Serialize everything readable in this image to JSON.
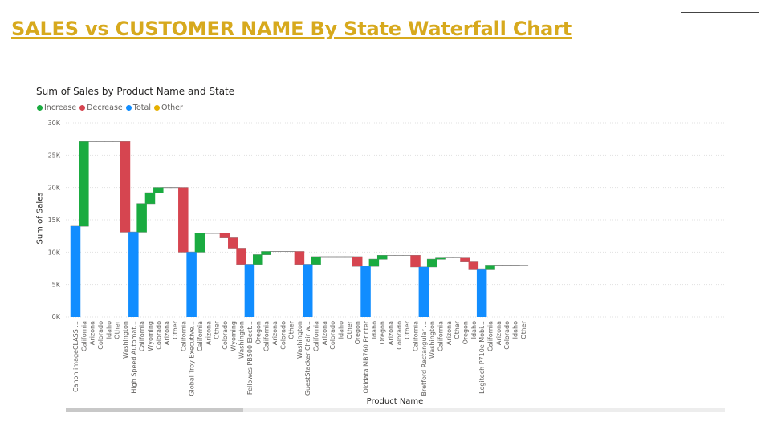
{
  "page": {
    "title": "SALES vs CUSTOMER NAME By State Waterfall Chart"
  },
  "legend": {
    "items": [
      {
        "label": "Increase",
        "color": "#1aab40"
      },
      {
        "label": "Decrease",
        "color": "#d64550"
      },
      {
        "label": "Total",
        "color": "#118dff"
      },
      {
        "label": "Other",
        "color": "#e6b000"
      }
    ]
  },
  "chart_data": {
    "type": "waterfall",
    "title": "Sum of Sales by Product Name and State",
    "xlabel": "Product Name",
    "ylabel": "Sum of Sales",
    "ylim": [
      0,
      30000
    ],
    "yticks": [
      {
        "value": 0,
        "label": "0K"
      },
      {
        "value": 5000,
        "label": "5K"
      },
      {
        "value": 10000,
        "label": "10K"
      },
      {
        "value": 15000,
        "label": "15K"
      },
      {
        "value": 20000,
        "label": "20K"
      },
      {
        "value": 25000,
        "label": "25K"
      },
      {
        "value": 30000,
        "label": "30K"
      }
    ],
    "grid": true,
    "legend_position": "top-left",
    "colors": {
      "increase": "#1aab40",
      "decrease": "#d64550",
      "total": "#118dff"
    },
    "bars": [
      {
        "label": "Canon imageCLASS ...",
        "kind": "total",
        "start": 0,
        "end": 14000
      },
      {
        "label": "California",
        "kind": "increase",
        "start": 14000,
        "end": 27100
      },
      {
        "label": "Arizona",
        "kind": "flat",
        "start": 27100,
        "end": 27100
      },
      {
        "label": "Colorado",
        "kind": "flat",
        "start": 27100,
        "end": 27100
      },
      {
        "label": "Idaho",
        "kind": "flat",
        "start": 27100,
        "end": 27100
      },
      {
        "label": "Other",
        "kind": "flat",
        "start": 27100,
        "end": 27100
      },
      {
        "label": "Washington",
        "kind": "decrease",
        "start": 27100,
        "end": 13100
      },
      {
        "label": "High Speed Automat...",
        "kind": "total",
        "start": 0,
        "end": 13100
      },
      {
        "label": "California",
        "kind": "increase",
        "start": 13100,
        "end": 17500
      },
      {
        "label": "Wyoming",
        "kind": "increase",
        "start": 17500,
        "end": 19200
      },
      {
        "label": "Colorado",
        "kind": "increase",
        "start": 19200,
        "end": 20000
      },
      {
        "label": "Arizona",
        "kind": "flat",
        "start": 20000,
        "end": 20000
      },
      {
        "label": "Other",
        "kind": "flat",
        "start": 20000,
        "end": 20000
      },
      {
        "label": "California",
        "kind": "decrease",
        "start": 20000,
        "end": 10000
      },
      {
        "label": "Global Troy Executive...",
        "kind": "total",
        "start": 0,
        "end": 10000
      },
      {
        "label": "California",
        "kind": "increase",
        "start": 10000,
        "end": 12900
      },
      {
        "label": "Arizona",
        "kind": "flat",
        "start": 12900,
        "end": 12900
      },
      {
        "label": "Other",
        "kind": "flat",
        "start": 12900,
        "end": 12900
      },
      {
        "label": "Colorado",
        "kind": "decrease",
        "start": 12900,
        "end": 12200
      },
      {
        "label": "Wyoming",
        "kind": "decrease",
        "start": 12200,
        "end": 10600
      },
      {
        "label": "Washington",
        "kind": "decrease",
        "start": 10600,
        "end": 8100
      },
      {
        "label": "Fellowes PB500 Elect...",
        "kind": "total",
        "start": 0,
        "end": 8100
      },
      {
        "label": "Oregon",
        "kind": "increase",
        "start": 8100,
        "end": 9600
      },
      {
        "label": "California",
        "kind": "increase",
        "start": 9600,
        "end": 10100
      },
      {
        "label": "Arizona",
        "kind": "flat",
        "start": 10100,
        "end": 10100
      },
      {
        "label": "Colorado",
        "kind": "flat",
        "start": 10100,
        "end": 10100
      },
      {
        "label": "Other",
        "kind": "flat",
        "start": 10100,
        "end": 10100
      },
      {
        "label": "Washington",
        "kind": "decrease",
        "start": 10100,
        "end": 8100
      },
      {
        "label": "GuestStacker Chair w...",
        "kind": "total",
        "start": 0,
        "end": 8100
      },
      {
        "label": "California",
        "kind": "increase",
        "start": 8100,
        "end": 9300
      },
      {
        "label": "Arizona",
        "kind": "flat",
        "start": 9300,
        "end": 9300
      },
      {
        "label": "Colorado",
        "kind": "flat",
        "start": 9300,
        "end": 9300
      },
      {
        "label": "Idaho",
        "kind": "flat",
        "start": 9300,
        "end": 9300
      },
      {
        "label": "Other",
        "kind": "flat",
        "start": 9300,
        "end": 9300
      },
      {
        "label": "Oregon",
        "kind": "decrease",
        "start": 9300,
        "end": 7800
      },
      {
        "label": "Okidata MB760 Printer",
        "kind": "total",
        "start": 0,
        "end": 7800
      },
      {
        "label": "Idaho",
        "kind": "increase",
        "start": 7800,
        "end": 8900
      },
      {
        "label": "Oregon",
        "kind": "increase",
        "start": 8900,
        "end": 9500
      },
      {
        "label": "Arizona",
        "kind": "flat",
        "start": 9500,
        "end": 9500
      },
      {
        "label": "Colorado",
        "kind": "flat",
        "start": 9500,
        "end": 9500
      },
      {
        "label": "Other",
        "kind": "flat",
        "start": 9500,
        "end": 9500
      },
      {
        "label": "California",
        "kind": "decrease",
        "start": 9500,
        "end": 7700
      },
      {
        "label": "Bretford Rectangular ...",
        "kind": "total",
        "start": 0,
        "end": 7700
      },
      {
        "label": "Washington",
        "kind": "increase",
        "start": 7700,
        "end": 8900
      },
      {
        "label": "California",
        "kind": "increase",
        "start": 8900,
        "end": 9200
      },
      {
        "label": "Arizona",
        "kind": "flat",
        "start": 9200,
        "end": 9200
      },
      {
        "label": "Other",
        "kind": "flat",
        "start": 9200,
        "end": 9200
      },
      {
        "label": "Oregon",
        "kind": "decrease",
        "start": 9200,
        "end": 8600
      },
      {
        "label": "Idaho",
        "kind": "decrease",
        "start": 8600,
        "end": 7400
      },
      {
        "label": "Logitech P710e Mobi...",
        "kind": "total",
        "start": 0,
        "end": 7400
      },
      {
        "label": "California",
        "kind": "increase",
        "start": 7400,
        "end": 8000
      },
      {
        "label": "Arizona",
        "kind": "flat",
        "start": 8000,
        "end": 8000
      },
      {
        "label": "Colorado",
        "kind": "flat",
        "start": 8000,
        "end": 8000
      },
      {
        "label": "Idaho",
        "kind": "flat",
        "start": 8000,
        "end": 8000
      },
      {
        "label": "Other",
        "kind": "flat",
        "start": 8000,
        "end": 8000
      }
    ]
  }
}
